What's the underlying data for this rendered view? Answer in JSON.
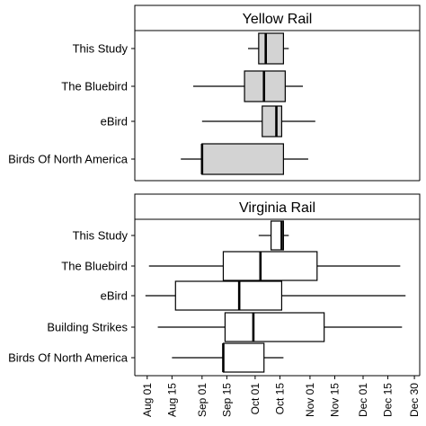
{
  "chart_data": {
    "type": "boxplot",
    "orientation": "horizontal",
    "x_axis": {
      "type": "date",
      "ticks": [
        "Aug 01",
        "Aug 15",
        "Sep 01",
        "Sep 15",
        "Oct 01",
        "Oct 15",
        "Nov 01",
        "Nov 15",
        "Dec 01",
        "Dec 15",
        "Dec 30"
      ],
      "range": [
        "Jul 25",
        "Jan 02"
      ]
    },
    "grid": false,
    "colors": {
      "yellow_rail_fill": "#d3d3d3",
      "virginia_rail_fill": "#ffffff",
      "stroke": "#000000"
    },
    "panels": [
      {
        "title": "Yellow Rail",
        "categories": [
          "This Study",
          "The Bluebird",
          "eBird",
          "Birds Of North America"
        ],
        "boxes": [
          {
            "category": "This Study",
            "whisker_low": "Sep 27",
            "q1": "Oct 03",
            "median": "Oct 07",
            "q3": "Oct 17",
            "whisker_high": "Oct 20"
          },
          {
            "category": "The Bluebird",
            "whisker_low": "Aug 27",
            "q1": "Sep 25",
            "median": "Oct 06",
            "q3": "Oct 18",
            "whisker_high": "Oct 28"
          },
          {
            "category": "eBird",
            "whisker_low": "Sep 01",
            "q1": "Oct 05",
            "median": "Oct 13",
            "q3": "Oct 16",
            "whisker_high": "Nov 04"
          },
          {
            "category": "Birds Of North America",
            "whisker_low": "Aug 20",
            "q1": "Sep 01",
            "median": "Sep 01",
            "q3": "Oct 17",
            "whisker_high": "Oct 31"
          }
        ]
      },
      {
        "title": "Virginia Rail",
        "categories": [
          "This Study",
          "The Bluebird",
          "eBird",
          "Building Strikes",
          "Birds Of North America"
        ],
        "boxes": [
          {
            "category": "This Study",
            "whisker_low": "Oct 03",
            "q1": "Oct 10",
            "median": "Oct 16",
            "q3": "Oct 17",
            "whisker_high": "Oct 20"
          },
          {
            "category": "The Bluebird",
            "whisker_low": "Aug 02",
            "q1": "Sep 13",
            "median": "Oct 04",
            "q3": "Nov 05",
            "whisker_high": "Dec 22"
          },
          {
            "category": "eBird",
            "whisker_low": "Jul 31",
            "q1": "Aug 17",
            "median": "Sep 22",
            "q3": "Oct 16",
            "whisker_high": "Dec 25"
          },
          {
            "category": "Building Strikes",
            "whisker_low": "Aug 07",
            "q1": "Sep 14",
            "median": "Sep 30",
            "q3": "Nov 09",
            "whisker_high": "Dec 23"
          },
          {
            "category": "Birds Of North America",
            "whisker_low": "Aug 15",
            "q1": "Sep 13",
            "median": "Sep 13",
            "q3": "Oct 06",
            "whisker_high": "Oct 17"
          }
        ]
      }
    ]
  }
}
